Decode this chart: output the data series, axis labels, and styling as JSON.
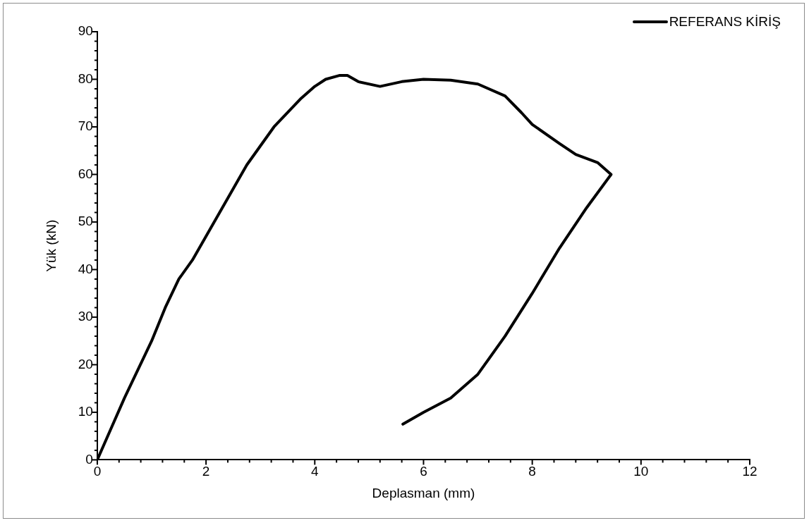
{
  "chart_data": {
    "type": "line",
    "xlabel": "Deplasman (mm)",
    "ylabel": "Yük (kN)",
    "legend": "top right",
    "grid": false,
    "marker": "none",
    "line_style": "solid",
    "xlim": [
      0,
      12
    ],
    "ylim": [
      0,
      90
    ],
    "xticks": [
      0,
      {
        "value": 0.4,
        "label": null
      },
      {
        "value": 0.8,
        "label": null
      },
      {
        "value": 1.2,
        "label": null
      },
      {
        "value": 1.6,
        "label": null
      },
      2,
      {
        "value": 2.4,
        "label": null
      },
      {
        "value": 2.8,
        "label": null
      },
      {
        "value": 3.2,
        "label": null
      },
      {
        "value": 3.6,
        "label": null
      },
      4,
      {
        "value": 4.4,
        "label": null
      },
      {
        "value": 4.8,
        "label": null
      },
      {
        "value": 5.2,
        "label": null
      },
      {
        "value": 5.6,
        "label": null
      },
      6,
      {
        "value": 6.4,
        "label": null
      },
      {
        "value": 6.8,
        "label": null
      },
      {
        "value": 7.2,
        "label": null
      },
      {
        "value": 7.6,
        "label": null
      },
      8,
      {
        "value": 8.4,
        "label": null
      },
      {
        "value": 8.8,
        "label": null
      },
      {
        "value": 9.2,
        "label": null
      },
      {
        "value": 9.6,
        "label": null
      },
      10,
      {
        "value": 10.4,
        "label": null
      },
      {
        "value": 10.8,
        "label": null
      },
      {
        "value": 11.2,
        "label": null
      },
      {
        "value": 11.6,
        "label": null
      },
      12
    ],
    "yticks": [
      0,
      {
        "value": 2,
        "label": null
      },
      {
        "value": 4,
        "label": null
      },
      {
        "value": 6,
        "label": null
      },
      {
        "value": 8,
        "label": null
      },
      10,
      {
        "value": 12,
        "label": null
      },
      {
        "value": 14,
        "label": null
      },
      {
        "value": 16,
        "label": null
      },
      {
        "value": 18,
        "label": null
      },
      20,
      {
        "value": 22,
        "label": null
      },
      {
        "value": 24,
        "label": null
      },
      {
        "value": 26,
        "label": null
      },
      {
        "value": 28,
        "label": null
      },
      30,
      {
        "value": 32,
        "label": null
      },
      {
        "value": 34,
        "label": null
      },
      {
        "value": 36,
        "label": null
      },
      {
        "value": 38,
        "label": null
      },
      40,
      {
        "value": 42,
        "label": null
      },
      {
        "value": 44,
        "label": null
      },
      {
        "value": 46,
        "label": null
      },
      {
        "value": 48,
        "label": null
      },
      50,
      {
        "value": 52,
        "label": null
      },
      {
        "value": 54,
        "label": null
      },
      {
        "value": 56,
        "label": null
      },
      {
        "value": 58,
        "label": null
      },
      60,
      {
        "value": 62,
        "label": null
      },
      {
        "value": 64,
        "label": null
      },
      {
        "value": 66,
        "label": null
      },
      {
        "value": 68,
        "label": null
      },
      70,
      {
        "value": 72,
        "label": null
      },
      {
        "value": 74,
        "label": null
      },
      {
        "value": 76,
        "label": null
      },
      {
        "value": 78,
        "label": null
      },
      80,
      {
        "value": 82,
        "label": null
      },
      {
        "value": 84,
        "label": null
      },
      {
        "value": 86,
        "label": null
      },
      {
        "value": 88,
        "label": null
      },
      90
    ],
    "series": [
      {
        "name": "REFERANS KİRİŞ",
        "color": "#000000",
        "x": [
          0,
          0.25,
          0.5,
          0.75,
          1,
          1.25,
          1.5,
          1.75,
          2,
          2.25,
          2.5,
          2.75,
          3,
          3.25,
          3.5,
          3.75,
          4,
          4.2,
          4.45,
          4.6,
          4.8,
          5.2,
          5.6,
          6,
          6.5,
          7,
          7.5,
          7.8,
          8,
          8.5,
          8.8,
          9.2,
          9.45,
          9,
          8.5,
          8,
          7.5,
          7,
          6.5,
          6,
          5.62
        ],
        "values": [
          0,
          6.5,
          13,
          19,
          25,
          32,
          38,
          42,
          47,
          52,
          57,
          62,
          66,
          70,
          73,
          76,
          78.5,
          80,
          80.8,
          80.8,
          79.5,
          78.5,
          79.5,
          80,
          79.8,
          79,
          76.5,
          73,
          70.5,
          66.5,
          64.2,
          62.5,
          60,
          53,
          44.5,
          35,
          26,
          18,
          13,
          10,
          7.5
        ]
      }
    ]
  }
}
